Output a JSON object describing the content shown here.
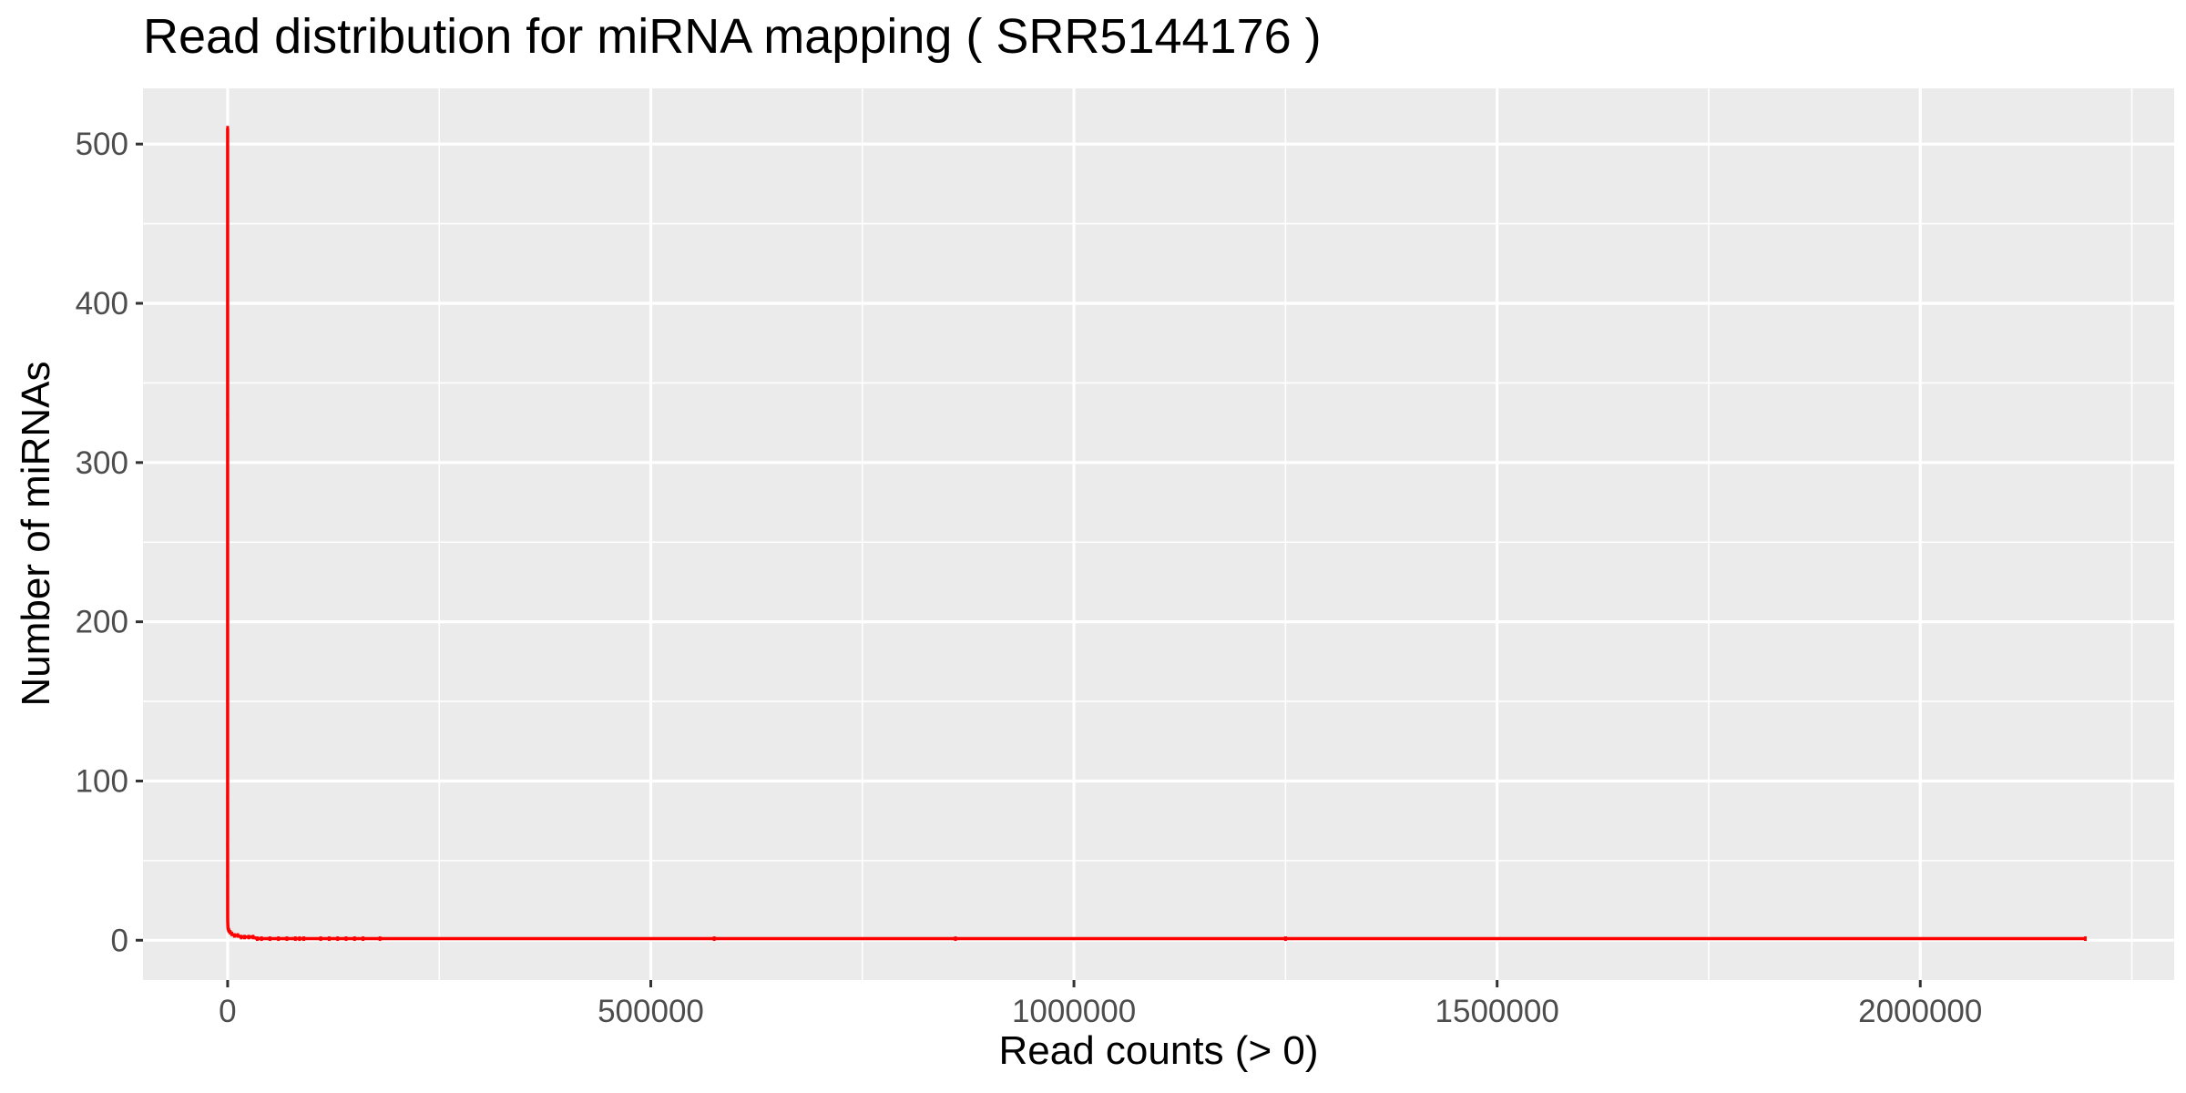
{
  "chart_data": {
    "type": "line",
    "title": "Read distribution for miRNA mapping ( SRR5144176 )",
    "xlabel": "Read counts (> 0)",
    "ylabel": "Number of miRNAs",
    "xlim": [
      -100000,
      2300000
    ],
    "ylim": [
      -25,
      535
    ],
    "x_ticks": [
      0,
      500000,
      1000000,
      1500000,
      2000000
    ],
    "x_tick_labels": [
      "0",
      "500000",
      "1000000",
      "1500000",
      "2000000"
    ],
    "y_ticks": [
      0,
      100,
      200,
      300,
      400,
      500
    ],
    "y_tick_labels": [
      "0",
      "100",
      "200",
      "300",
      "400",
      "500"
    ],
    "grid": true,
    "legend": "none",
    "series": [
      {
        "color": "#ff0000",
        "x": [
          1,
          2,
          3,
          5,
          8,
          12,
          20,
          35,
          60,
          100,
          200,
          400,
          800,
          1500,
          3000,
          5000,
          8000,
          12000,
          16000,
          20000,
          25000,
          30000,
          35000,
          40000,
          50000,
          60000,
          70000,
          80000,
          85000,
          90000,
          110000,
          120000,
          130000,
          140000,
          150000,
          160000,
          180000,
          575000,
          860000,
          1250000,
          2195000
        ],
        "y": [
          510,
          330,
          150,
          90,
          60,
          40,
          28,
          20,
          15,
          12,
          10,
          8,
          7,
          6,
          5,
          4,
          3,
          3,
          2,
          2,
          2,
          2,
          1,
          1,
          1,
          1,
          1,
          1,
          1,
          1,
          1,
          1,
          1,
          1,
          1,
          1,
          1,
          1,
          1,
          1,
          1
        ]
      }
    ]
  }
}
